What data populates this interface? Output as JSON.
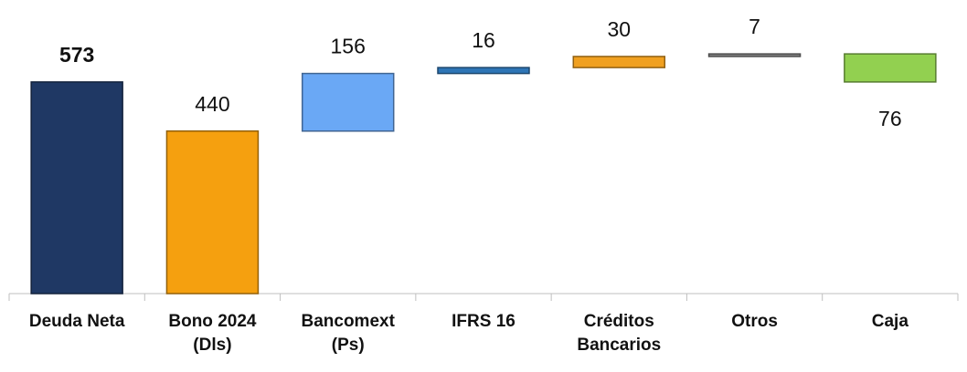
{
  "chart_data": {
    "type": "waterfall",
    "categories": [
      "Deuda Neta",
      "Bono 2024 (Dls)",
      "Bancomext (Ps)",
      "IFRS 16",
      "Créditos Bancarios",
      "Otros",
      "Caja"
    ],
    "values": [
      573,
      440,
      156,
      16,
      30,
      7,
      -76
    ],
    "value_labels": [
      "573",
      "440",
      "156",
      "16",
      "30",
      "7",
      "76"
    ],
    "measure": [
      "absolute",
      "relative",
      "relative",
      "relative",
      "relative",
      "relative",
      "relative"
    ],
    "colors": [
      "#1f3864",
      "#f5a00f",
      "#6aa8f5",
      "#2e75b6",
      "#f0a020",
      "#808080",
      "#92d050"
    ],
    "ylim": [
      0,
      790
    ]
  }
}
